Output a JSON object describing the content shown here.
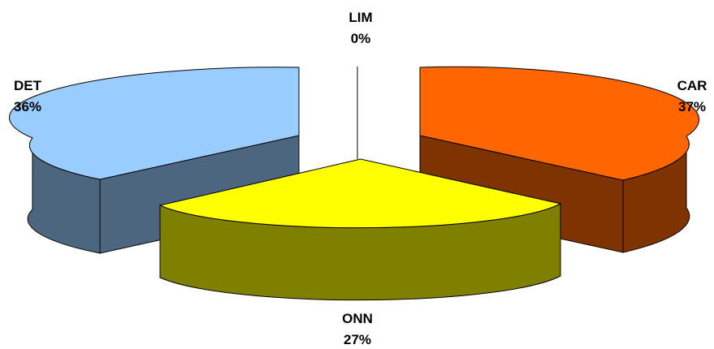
{
  "chart_data": {
    "type": "pie",
    "style": "3d-exploded",
    "slices": [
      {
        "label": "CAR",
        "value": 37,
        "value_label": "37%",
        "top_color": "#ff6600",
        "side_color": "#7f3300"
      },
      {
        "label": "ONN",
        "value": 27,
        "value_label": "27%",
        "top_color": "#ffff00",
        "side_color": "#808000"
      },
      {
        "label": "DET",
        "value": 36,
        "value_label": "36%",
        "top_color": "#99ccff",
        "side_color": "#4d6680"
      },
      {
        "label": "LIM",
        "value": 0,
        "value_label": "0%",
        "top_color": "#ffffff",
        "side_color": "#ffffff"
      }
    ],
    "legend": "none"
  }
}
